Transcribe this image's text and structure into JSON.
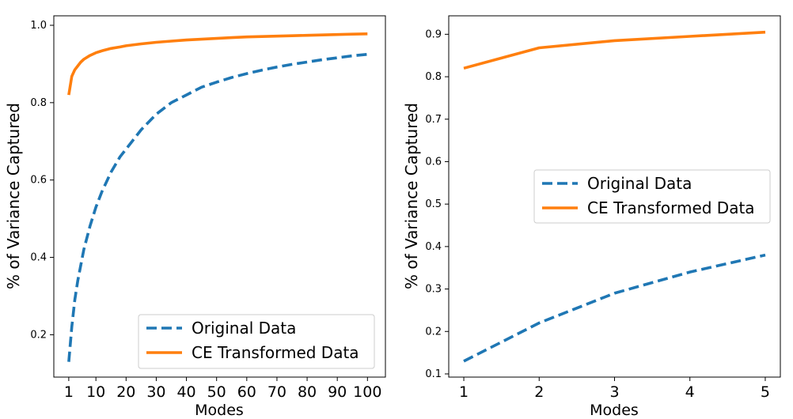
{
  "colors": {
    "original": "#1f77b4",
    "transformed": "#ff7f0e",
    "axis": "#000000",
    "legend_border": "#cccccc"
  },
  "chart_data": [
    {
      "type": "line",
      "xlabel": "Modes",
      "ylabel": "% of Variance Captured",
      "xlim": [
        -3.95,
        105.95
      ],
      "ylim": [
        0.0905,
        1.0245
      ],
      "xticks": [
        1,
        10,
        20,
        30,
        40,
        50,
        60,
        70,
        80,
        90,
        100
      ],
      "yticks": [
        0.2,
        0.4,
        0.6,
        0.8,
        1.0
      ],
      "ytick_labels": [
        "0.2",
        "0.4",
        "0.6",
        "0.8",
        "1.0"
      ],
      "grid": false,
      "legend_position": "lower-right",
      "series": [
        {
          "name": "Original Data",
          "style": "dashed",
          "x": [
            1,
            2,
            3,
            4,
            5,
            6,
            8,
            10,
            12,
            15,
            18,
            20,
            25,
            30,
            35,
            40,
            45,
            50,
            55,
            60,
            65,
            70,
            75,
            80,
            85,
            90,
            95,
            100
          ],
          "y": [
            0.13,
            0.22,
            0.29,
            0.34,
            0.38,
            0.42,
            0.48,
            0.53,
            0.57,
            0.62,
            0.66,
            0.68,
            0.73,
            0.77,
            0.8,
            0.82,
            0.84,
            0.853,
            0.865,
            0.875,
            0.884,
            0.892,
            0.899,
            0.905,
            0.911,
            0.916,
            0.921,
            0.925
          ]
        },
        {
          "name": "CE Transformed Data",
          "style": "solid",
          "x": [
            1,
            2,
            3,
            4,
            5,
            6,
            8,
            10,
            12,
            15,
            18,
            20,
            25,
            30,
            35,
            40,
            45,
            50,
            55,
            60,
            65,
            70,
            75,
            80,
            85,
            90,
            95,
            100
          ],
          "y": [
            0.82,
            0.868,
            0.885,
            0.895,
            0.905,
            0.912,
            0.922,
            0.929,
            0.934,
            0.94,
            0.944,
            0.947,
            0.952,
            0.956,
            0.959,
            0.962,
            0.964,
            0.966,
            0.968,
            0.97,
            0.971,
            0.972,
            0.973,
            0.974,
            0.975,
            0.976,
            0.977,
            0.978
          ]
        }
      ]
    },
    {
      "type": "line",
      "xlabel": "Modes",
      "ylabel": "% of Variance Captured",
      "xlim": [
        0.8,
        5.2
      ],
      "ylim": [
        0.0925,
        0.9435
      ],
      "xticks": [
        1,
        2,
        3,
        4,
        5
      ],
      "yticks": [
        0.1,
        0.2,
        0.3,
        0.4,
        0.5,
        0.6,
        0.7,
        0.8,
        0.9
      ],
      "ytick_labels": [
        "0.1",
        "0.2",
        "0.3",
        "0.4",
        "0.5",
        "0.6",
        "0.7",
        "0.8",
        "0.9"
      ],
      "grid": false,
      "legend_position": "center-right",
      "series": [
        {
          "name": "Original Data",
          "style": "dashed",
          "x": [
            1,
            2,
            3,
            4,
            5
          ],
          "y": [
            0.13,
            0.22,
            0.29,
            0.34,
            0.38
          ]
        },
        {
          "name": "CE Transformed Data",
          "style": "solid",
          "x": [
            1,
            2,
            3,
            4,
            5
          ],
          "y": [
            0.82,
            0.868,
            0.885,
            0.895,
            0.905
          ]
        }
      ]
    }
  ]
}
